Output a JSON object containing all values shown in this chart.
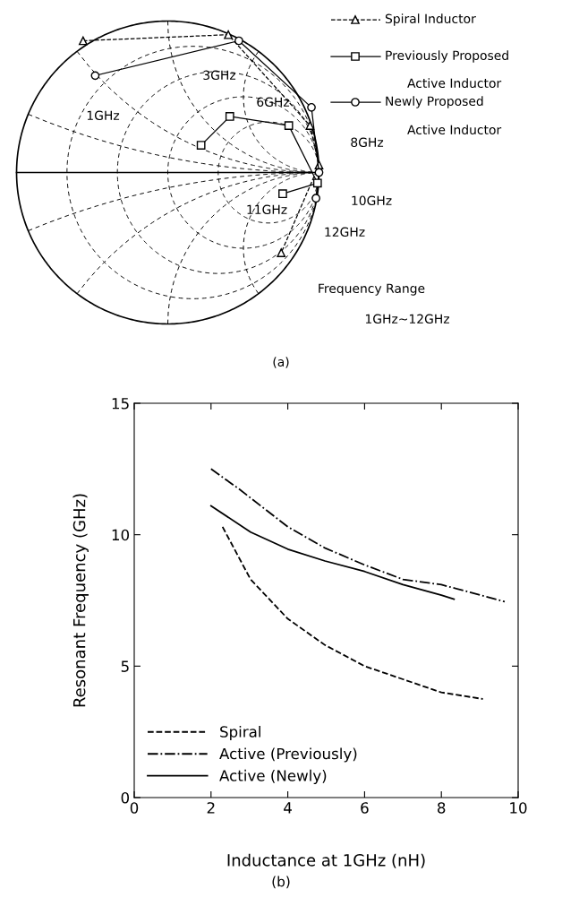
{
  "chart_data": [
    {
      "type": "other",
      "annotations": [
        "Spiral Inductor",
        "Previously Proposed",
        "Active Inductor",
        "Newly Proposed",
        "Active Inductor",
        "1GHz",
        "3GHz",
        "6GHz",
        "8GHz",
        "10GHz",
        "11GHz",
        "12GHz",
        "Frequency Range",
        "1GHz~12GHz",
        "(a)"
      ]
    },
    {
      "type": "line",
      "xlabel": "Inductance at 1GHz (nH)",
      "ylabel": "Resonant Frequency (GHz)",
      "xlim": [
        0,
        10
      ],
      "ylim": [
        0,
        15
      ],
      "xticks": [
        0,
        2,
        4,
        6,
        8,
        10
      ],
      "yticks": [
        0,
        5,
        10,
        15
      ],
      "legend": "bottom left",
      "grid": false,
      "annotations": [
        "(b)"
      ],
      "series": [
        {
          "name": "Spiral",
          "color": "#000000",
          "line_style": "dashed",
          "x": [
            2.3,
            3.03,
            4.0,
            4.97,
            6.0,
            7.0,
            8.0,
            9.08
          ],
          "values": [
            10.3,
            8.3,
            6.8,
            5.8,
            5.0,
            4.5,
            4.0,
            3.75
          ]
        },
        {
          "name": "Active (Previously)",
          "color": "#000000",
          "line_style": "dashdot",
          "x": [
            2.0,
            2.72,
            4.0,
            4.96,
            6.0,
            7.0,
            8.0,
            9.65
          ],
          "values": [
            12.5,
            11.75,
            10.3,
            9.5,
            8.85,
            8.3,
            8.1,
            7.45
          ]
        },
        {
          "name": "Active (Newly)",
          "color": "#000000",
          "line_style": "solid",
          "x": [
            2.0,
            3.03,
            4.0,
            4.97,
            6.0,
            7.0,
            8.0,
            8.33
          ],
          "values": [
            11.1,
            10.1,
            9.45,
            9.0,
            8.6,
            8.1,
            7.7,
            7.55
          ]
        }
      ]
    }
  ]
}
